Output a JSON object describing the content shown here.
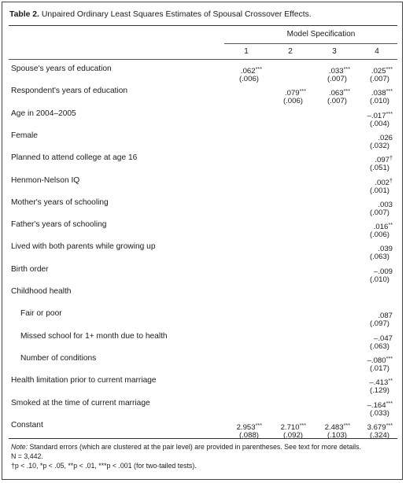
{
  "table": {
    "number_label": "Table 2.",
    "title": "Unpaired Ordinary Least Squares Estimates of Spousal Crossover Effects.",
    "spec_header": "Model Specification",
    "columns": [
      "1",
      "2",
      "3",
      "4"
    ],
    "rows": [
      {
        "label": "Spouse's years of education",
        "cells": [
          {
            "coef": ".062",
            "sig": "***",
            "se": "(.006)"
          },
          null,
          {
            "coef": ".033",
            "sig": "***",
            "se": "(.007)"
          },
          {
            "coef": ".025",
            "sig": "***",
            "se": "(.007)"
          }
        ]
      },
      {
        "label": "Respondent's years of education",
        "cells": [
          null,
          {
            "coef": ".079",
            "sig": "***",
            "se": "(.006)"
          },
          {
            "coef": ".063",
            "sig": "***",
            "se": "(.007)"
          },
          {
            "coef": ".038",
            "sig": "***",
            "se": "(.010)"
          }
        ]
      },
      {
        "label": "Age in 2004–2005",
        "cells": [
          null,
          null,
          null,
          {
            "coef": "–.017",
            "sig": "***",
            "se": "(.004)"
          }
        ]
      },
      {
        "label": "Female",
        "cells": [
          null,
          null,
          null,
          {
            "coef": ".026",
            "sig": "",
            "se": "(.032)"
          }
        ]
      },
      {
        "label": "Planned to attend college at age 16",
        "cells": [
          null,
          null,
          null,
          {
            "coef": ".097",
            "sig": "†",
            "se": "(.051)"
          }
        ]
      },
      {
        "label": "Henmon-Nelson IQ",
        "cells": [
          null,
          null,
          null,
          {
            "coef": ".002",
            "sig": "†",
            "se": "(.001)"
          }
        ]
      },
      {
        "label": "Mother's years of schooling",
        "cells": [
          null,
          null,
          null,
          {
            "coef": ".003",
            "sig": "",
            "se": "(.007)"
          }
        ]
      },
      {
        "label": "Father's years of schooling",
        "cells": [
          null,
          null,
          null,
          {
            "coef": ".016",
            "sig": "**",
            "se": "(.006)"
          }
        ]
      },
      {
        "label": "Lived with both parents while growing up",
        "cells": [
          null,
          null,
          null,
          {
            "coef": ".039",
            "sig": "",
            "se": "(.063)"
          }
        ]
      },
      {
        "label": "Birth order",
        "cells": [
          null,
          null,
          null,
          {
            "coef": "–.009",
            "sig": "",
            "se": "(.010)"
          }
        ]
      },
      {
        "label": "Childhood health",
        "cells": [
          null,
          null,
          null,
          null
        ]
      },
      {
        "label": "Fair or poor",
        "sub": true,
        "cells": [
          null,
          null,
          null,
          {
            "coef": ".087",
            "sig": "",
            "se": "(.097)"
          }
        ]
      },
      {
        "label": "Missed school for 1+ month due to health",
        "sub": true,
        "cells": [
          null,
          null,
          null,
          {
            "coef": "–.047",
            "sig": "",
            "se": "(.063)"
          }
        ]
      },
      {
        "label": "Number of conditions",
        "sub": true,
        "cells": [
          null,
          null,
          null,
          {
            "coef": "–.080",
            "sig": "***",
            "se": "(.017)"
          }
        ]
      },
      {
        "label": "Health limitation prior to current marriage",
        "cells": [
          null,
          null,
          null,
          {
            "coef": "–.413",
            "sig": "**",
            "se": "(.129)"
          }
        ]
      },
      {
        "label": "Smoked at the time of current marriage",
        "cells": [
          null,
          null,
          null,
          {
            "coef": "–.164",
            "sig": "***",
            "se": "(.033)"
          }
        ]
      },
      {
        "label": "Constant",
        "cells": [
          {
            "coef": "2.953",
            "sig": "***",
            "se": "(.088)"
          },
          {
            "coef": "2.710",
            "sig": "***",
            "se": "(.092)"
          },
          {
            "coef": "2.483",
            "sig": "***",
            "se": "(.103)"
          },
          {
            "coef": "3.679",
            "sig": "***",
            "se": "(.324)"
          }
        ]
      }
    ],
    "notes": {
      "note_label": "Note:",
      "note_text": "Standard errors (which are clustered at the pair level) are provided in parentheses. See text for more details.",
      "n_line": "N = 3,442.",
      "sig_line": "†p < .10, *p < .05, **p < .01, ***p < .001 (for two-tailed tests)."
    }
  }
}
